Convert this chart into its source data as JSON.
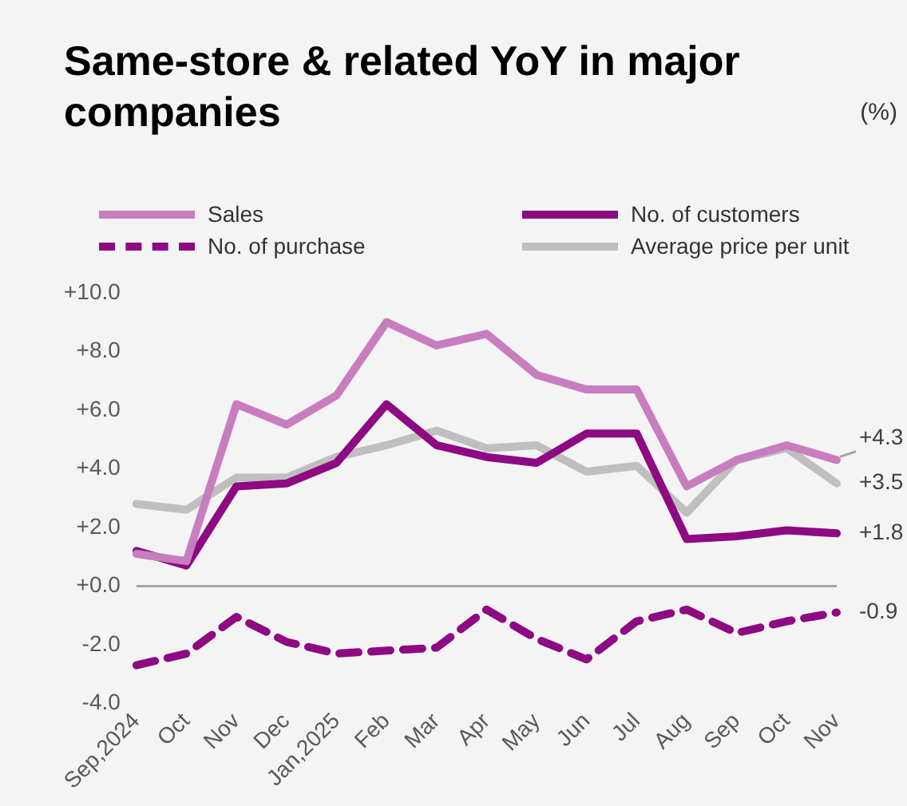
{
  "chart_data": {
    "type": "line",
    "title": "Same-store & related YoY in major companies",
    "annotations": [
      "(%)"
    ],
    "categories": [
      "Sep,2024",
      "Oct",
      "Nov",
      "Dec",
      "Jan,2025",
      "Feb",
      "Mar",
      "Apr",
      "May",
      "Jun",
      "Jul",
      "Aug",
      "Sep",
      "Oct",
      "Nov"
    ],
    "series": [
      {
        "name": "Sales",
        "color": "#c87dbf",
        "values": [
          1.1,
          0.85,
          6.2,
          5.5,
          6.5,
          9.0,
          8.2,
          8.6,
          7.2,
          6.7,
          6.7,
          3.4,
          4.3,
          4.8,
          4.3
        ],
        "value_labels": [
          null,
          null,
          null,
          null,
          null,
          null,
          null,
          null,
          null,
          null,
          null,
          null,
          null,
          null,
          "+4.3"
        ]
      },
      {
        "name": "No. of customers",
        "color": "#8e0a82",
        "values": [
          1.2,
          0.7,
          3.4,
          3.5,
          4.2,
          6.2,
          4.8,
          4.4,
          4.2,
          5.2,
          5.2,
          1.6,
          1.7,
          1.9,
          1.8
        ],
        "value_labels": [
          null,
          null,
          null,
          null,
          null,
          null,
          null,
          null,
          null,
          null,
          null,
          null,
          null,
          null,
          "+1.8"
        ]
      },
      {
        "name": "No. of purchase",
        "color": "#8e0a82",
        "line_style": "dashed",
        "values": [
          -2.7,
          -2.3,
          -1.05,
          -1.9,
          -2.3,
          -2.2,
          -2.1,
          -0.8,
          -1.8,
          -2.5,
          -1.2,
          -0.8,
          -1.6,
          -1.2,
          -0.9
        ],
        "value_labels": [
          null,
          null,
          null,
          null,
          null,
          null,
          null,
          null,
          null,
          null,
          null,
          null,
          null,
          null,
          "-0.9"
        ]
      },
      {
        "name": "Average price per unit",
        "color": "#bfbfbf",
        "values": [
          2.8,
          2.6,
          3.7,
          3.7,
          4.4,
          4.8,
          5.3,
          4.7,
          4.8,
          3.9,
          4.1,
          2.5,
          4.3,
          4.7,
          3.5
        ],
        "value_labels": [
          null,
          null,
          null,
          null,
          null,
          null,
          null,
          null,
          null,
          null,
          null,
          null,
          null,
          null,
          "+3.5"
        ]
      }
    ],
    "ylim": [
      -4,
      10
    ],
    "yticks": [
      {
        "value": -4,
        "label": "-4.0"
      },
      {
        "value": -2,
        "label": "-2.0"
      },
      {
        "value": 0,
        "label": "+0.0"
      },
      {
        "value": 2,
        "label": "+2.0"
      },
      {
        "value": 4,
        "label": "+4.0"
      },
      {
        "value": 6,
        "label": "+6.0"
      },
      {
        "value": 8,
        "label": "+8.0"
      },
      {
        "value": 10,
        "label": "+10.0"
      }
    ],
    "ref_lines": [
      {
        "axis": "y",
        "value": 0,
        "color": "#a6a6a6"
      }
    ],
    "grid": false,
    "legend": "top",
    "marker": "none",
    "line_style": "solid"
  }
}
